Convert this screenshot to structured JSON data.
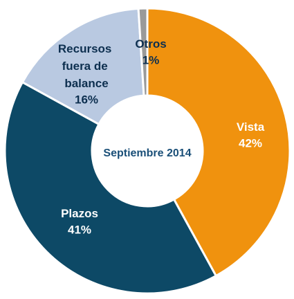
{
  "chart_data": {
    "type": "donut",
    "center_label": "Septiembre 2014",
    "categories": [
      "Vista",
      "Plazos",
      "Recursos fuera de balance",
      "Otros"
    ],
    "values": [
      42,
      41,
      16,
      1
    ],
    "value_labels": [
      "42%",
      "41%",
      "16%",
      "1%"
    ],
    "colors": [
      "#f0920e",
      "#0d4966",
      "#b9c9e1",
      "#9a9a9a"
    ],
    "label_colors": [
      "#ffffff",
      "#ffffff",
      "#0d2f4f",
      "#0d2f4f"
    ]
  }
}
